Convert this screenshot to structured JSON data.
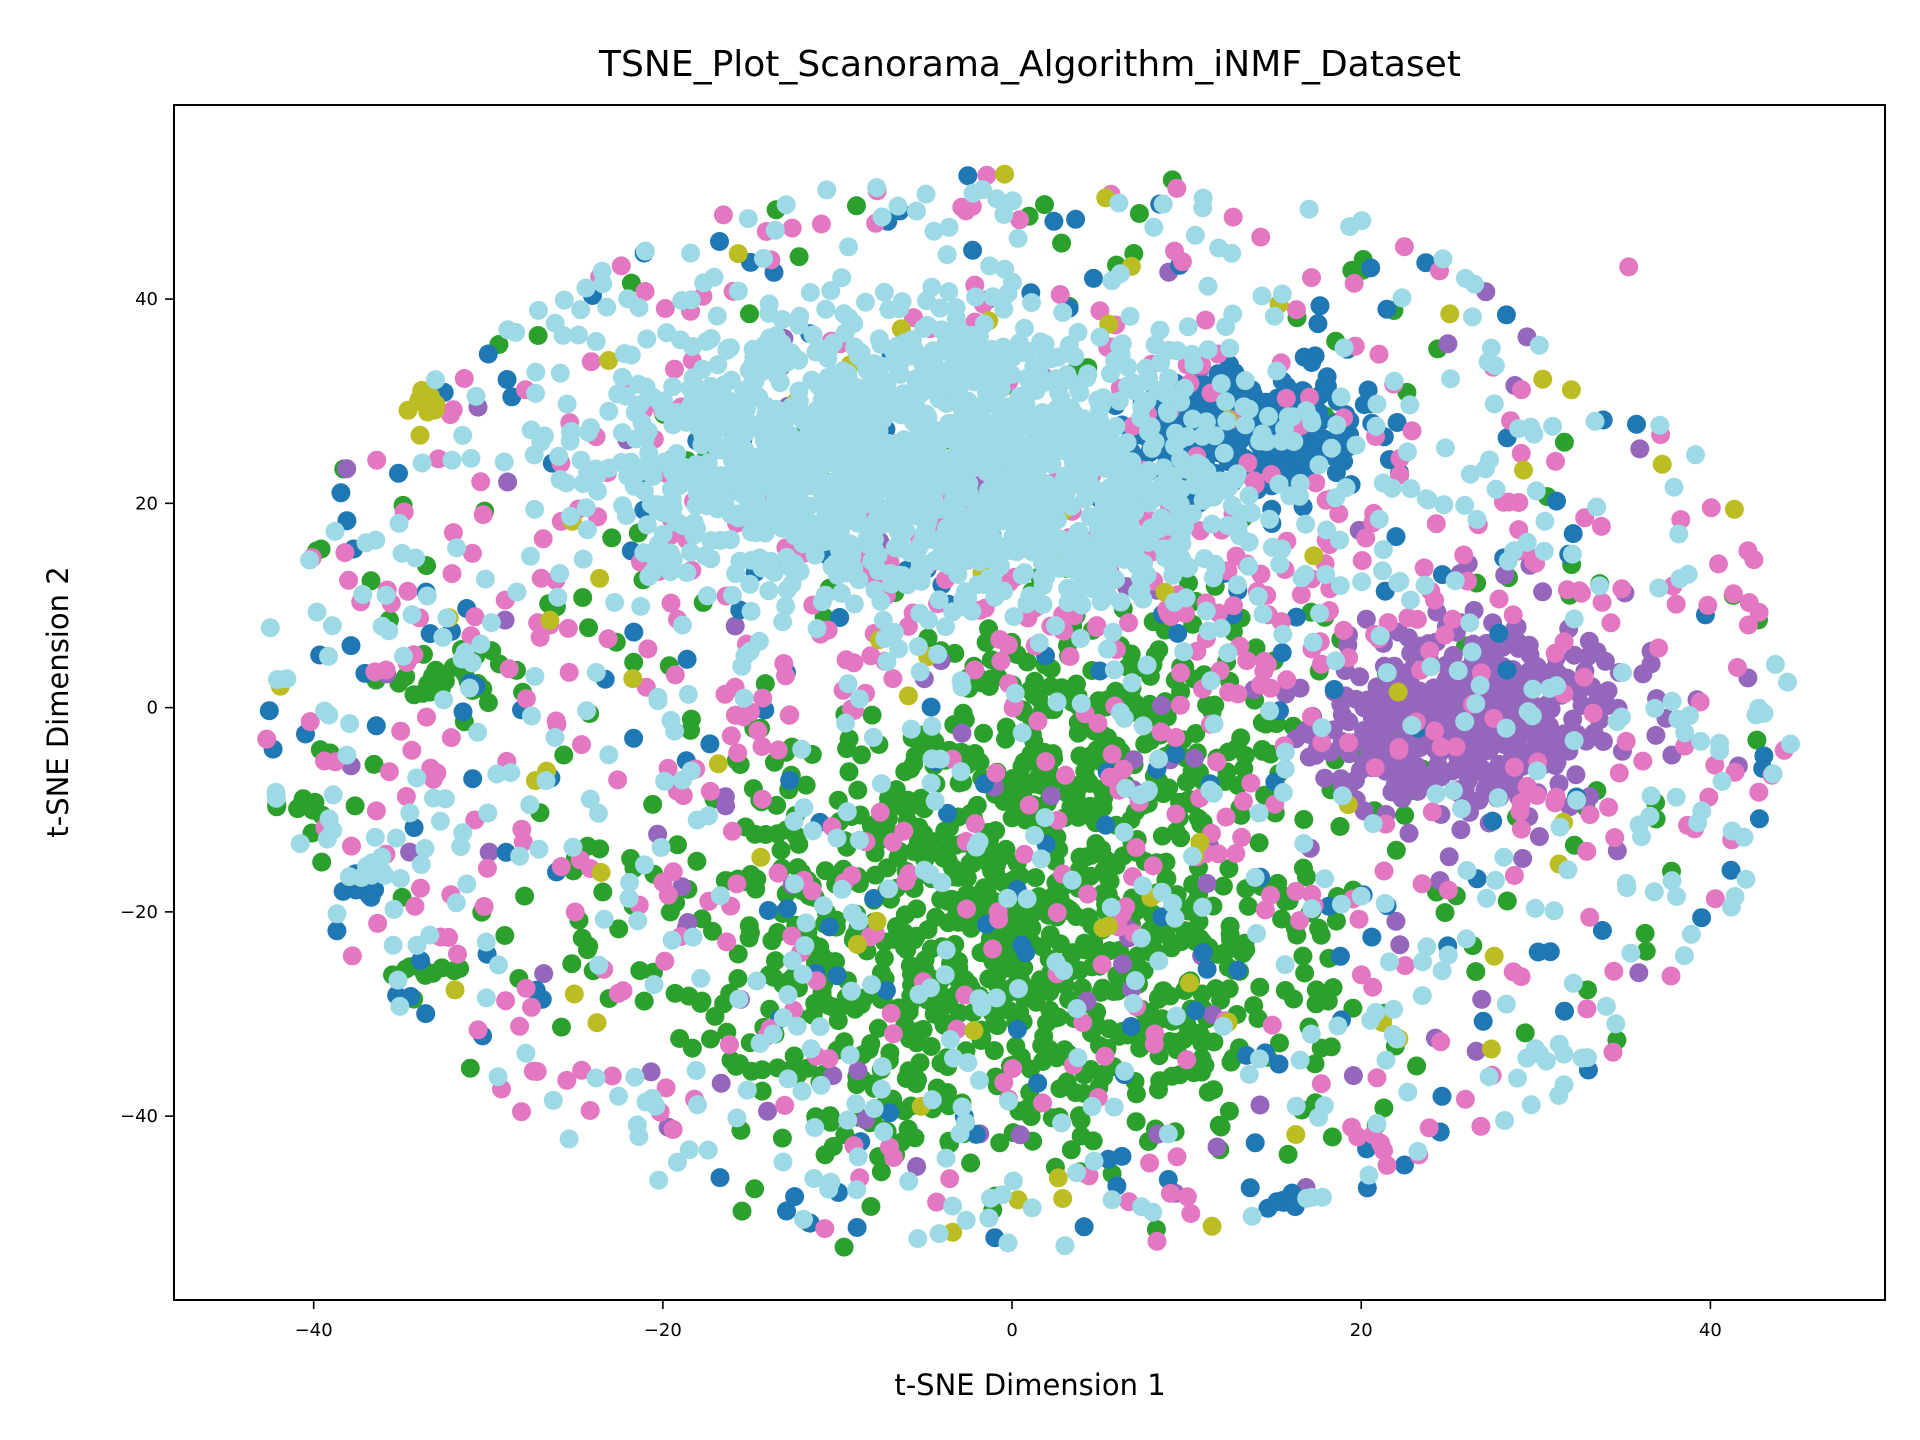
{
  "chart_data": {
    "type": "scatter",
    "title": "TSNE_Plot_Scanorama_Algorithm_iNMF_Dataset",
    "xlabel": "t-SNE Dimension 1",
    "ylabel": "t-SNE Dimension 2",
    "xlim": [
      -48,
      50
    ],
    "ylim": [
      -58,
      59
    ],
    "xticks": [
      -40,
      -20,
      0,
      20,
      40
    ],
    "yticks": [
      -40,
      -20,
      0,
      20,
      40
    ],
    "xtick_labels": [
      "−40",
      "−20",
      "0",
      "20",
      "40"
    ],
    "ytick_labels": [
      "−40",
      "−20",
      "0",
      "20",
      "40"
    ],
    "grid": false,
    "legend": "none",
    "marker": "circle",
    "colors": {
      "blue": "#1f77b4",
      "green": "#2ca02c",
      "purple": "#9467bd",
      "pink": "#e377c2",
      "olive": "#bcbd22",
      "lightblue": "#9edae5"
    },
    "series": [
      {
        "color": "#2ca02c",
        "clusters": [
          {
            "cx": 0,
            "cy": -22,
            "sx": 10,
            "sy": 11,
            "n": 900
          },
          {
            "cx": 6,
            "cy": -2,
            "sx": 6,
            "sy": 6,
            "n": 180
          },
          {
            "cx": -32,
            "cy": 3,
            "sx": 2,
            "sy": 1.2,
            "n": 25
          },
          {
            "cx": -40,
            "cy": -10,
            "sx": 1.2,
            "sy": 1,
            "n": 12
          },
          {
            "cx": -34,
            "cy": -26,
            "sx": 1.3,
            "sy": 0.6,
            "n": 10
          }
        ],
        "scatter_n": 170
      },
      {
        "color": "#9467bd",
        "clusters": [
          {
            "cx": 27,
            "cy": -1,
            "sx": 4,
            "sy": 4.5,
            "n": 380
          },
          {
            "cx": 22,
            "cy": -3,
            "sx": 3,
            "sy": 3,
            "n": 80
          }
        ],
        "scatter_n": 100
      },
      {
        "color": "#1f77b4",
        "clusters": [
          {
            "cx": 13,
            "cy": 27,
            "sx": 3.5,
            "sy": 2.8,
            "n": 300
          },
          {
            "cx": -37,
            "cy": -17,
            "sx": 0.9,
            "sy": 1.2,
            "n": 12
          },
          {
            "cx": 15.5,
            "cy": -48,
            "sx": 0.6,
            "sy": 0.6,
            "n": 6
          }
        ],
        "scatter_n": 220
      },
      {
        "color": "#e377c2",
        "clusters": [
          {
            "cx": 5,
            "cy": 10,
            "sx": 16,
            "sy": 12,
            "n": 250
          }
        ],
        "scatter_n": 420
      },
      {
        "color": "#bcbd22",
        "clusters": [
          {
            "cx": -34,
            "cy": 30,
            "sx": 1,
            "sy": 0.8,
            "n": 10
          }
        ],
        "scatter_n": 70
      },
      {
        "color": "#9edae5",
        "clusters": [
          {
            "cx": -5,
            "cy": 27,
            "sx": 8,
            "sy": 6,
            "n": 900
          },
          {
            "cx": 2,
            "cy": 18,
            "sx": 7,
            "sy": 5,
            "n": 350
          },
          {
            "cx": -14,
            "cy": 22,
            "sx": 5,
            "sy": 5,
            "n": 200
          },
          {
            "cx": -37,
            "cy": -16,
            "sx": 0.8,
            "sy": 0.8,
            "n": 8
          }
        ],
        "scatter_n": 700
      }
    ]
  }
}
